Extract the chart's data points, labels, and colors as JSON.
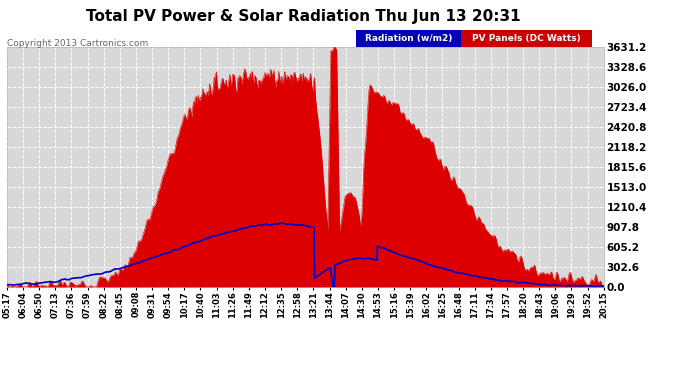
{
  "title": "Total PV Power & Solar Radiation Thu Jun 13 20:31",
  "copyright": "Copyright 2013 Cartronics.com",
  "ylabel_right": [
    "0.0",
    "302.6",
    "605.2",
    "907.8",
    "1210.4",
    "1513.0",
    "1815.6",
    "2118.2",
    "2420.8",
    "2723.4",
    "3026.0",
    "3328.6",
    "3631.2"
  ],
  "ymax": 3631.2,
  "ymin": 0.0,
  "legend_radiation_label": "Radiation (w/m2)",
  "legend_pv_label": "PV Panels (DC Watts)",
  "legend_radiation_bg": "#0000bb",
  "legend_pv_bg": "#cc0000",
  "background_color": "#ffffff",
  "plot_bg": "#d8d8d8",
  "grid_color": "#ffffff",
  "grid_linestyle": "--",
  "pv_fill_color": "#dd0000",
  "radiation_line_color": "#0000cc",
  "x_tick_labels": [
    "05:17",
    "06:04",
    "06:50",
    "07:13",
    "07:36",
    "07:59",
    "08:22",
    "08:45",
    "09:08",
    "09:31",
    "09:54",
    "10:17",
    "10:40",
    "11:03",
    "11:26",
    "11:49",
    "12:12",
    "12:35",
    "12:58",
    "13:21",
    "13:44",
    "14:07",
    "14:30",
    "14:53",
    "15:16",
    "15:39",
    "16:02",
    "16:25",
    "16:48",
    "17:11",
    "17:34",
    "17:57",
    "18:20",
    "18:43",
    "19:06",
    "19:29",
    "19:52",
    "20:15"
  ]
}
